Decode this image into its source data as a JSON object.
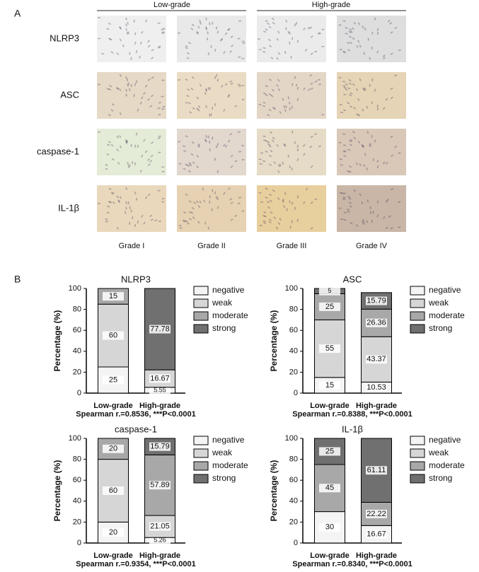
{
  "panel_a": {
    "label": "A",
    "groups": [
      "Low-grade",
      "High-grade"
    ],
    "rows": [
      "NLRP3",
      "ASC",
      "caspase-1",
      "IL-1β"
    ],
    "columns": [
      "Grade I",
      "Grade II",
      "Grade III",
      "Grade IV"
    ]
  },
  "panel_b": {
    "label": "B"
  },
  "chart_data": [
    {
      "type": "bar",
      "stacked": true,
      "title": "NLRP3",
      "y_label": "Percentage (%)",
      "annotation": "Spearman r.=0.8536, ***P<0.0001",
      "categories": [
        "Low-grade",
        "High-grade"
      ],
      "series": [
        {
          "name": "negative",
          "color": "#f4f4f4",
          "values": [
            25,
            5.55
          ]
        },
        {
          "name": "weak",
          "color": "#d6d6d6",
          "values": [
            60,
            16.67
          ]
        },
        {
          "name": "moderate",
          "color": "#a8a8a8",
          "values": [
            15,
            0
          ]
        },
        {
          "name": "strong",
          "color": "#707070",
          "values": [
            0,
            77.78
          ]
        }
      ],
      "ylim": [
        0,
        100
      ],
      "yticks": [
        0,
        20,
        40,
        60,
        80,
        100
      ]
    },
    {
      "type": "bar",
      "stacked": true,
      "title": "ASC",
      "y_label": "Percentage (%)",
      "annotation": "Spearman r.=0.8388, ***P<0.0001",
      "categories": [
        "Low-grade",
        "High-grade"
      ],
      "series": [
        {
          "name": "negative",
          "color": "#f4f4f4",
          "values": [
            15,
            10.53
          ]
        },
        {
          "name": "weak",
          "color": "#d6d6d6",
          "values": [
            55,
            43.37
          ]
        },
        {
          "name": "moderate",
          "color": "#a8a8a8",
          "values": [
            25,
            26.36
          ]
        },
        {
          "name": "strong",
          "color": "#707070",
          "values": [
            5,
            15.79
          ]
        }
      ],
      "ylim": [
        0,
        100
      ],
      "yticks": [
        0,
        20,
        40,
        60,
        80,
        100
      ]
    },
    {
      "type": "bar",
      "stacked": true,
      "title": "caspase-1",
      "y_label": "Percentage (%)",
      "annotation": "Spearman r.=0.9354, ***P<0.0001",
      "categories": [
        "Low-grade",
        "High-grade"
      ],
      "series": [
        {
          "name": "negative",
          "color": "#f4f4f4",
          "values": [
            20,
            5.26
          ]
        },
        {
          "name": "weak",
          "color": "#d6d6d6",
          "values": [
            60,
            21.05
          ]
        },
        {
          "name": "moderate",
          "color": "#a8a8a8",
          "values": [
            20,
            57.89
          ]
        },
        {
          "name": "strong",
          "color": "#707070",
          "values": [
            0,
            15.79
          ]
        }
      ],
      "ylim": [
        0,
        100
      ],
      "yticks": [
        0,
        20,
        40,
        60,
        80,
        100
      ]
    },
    {
      "type": "bar",
      "stacked": true,
      "title": "IL-1β",
      "y_label": "Percentage (%)",
      "annotation": "Spearman r.=0.8340, ***P<0.0001",
      "categories": [
        "Low-grade",
        "High-grade"
      ],
      "series": [
        {
          "name": "negative",
          "color": "#f4f4f4",
          "values": [
            30,
            16.67
          ]
        },
        {
          "name": "weak",
          "color": "#d6d6d6",
          "values": [
            0,
            0
          ]
        },
        {
          "name": "moderate",
          "color": "#a8a8a8",
          "values": [
            45,
            22.22
          ]
        },
        {
          "name": "strong",
          "color": "#707070",
          "values": [
            25,
            61.11
          ]
        }
      ],
      "ylim": [
        0,
        100
      ],
      "yticks": [
        0,
        20,
        40,
        60,
        80,
        100
      ]
    }
  ]
}
